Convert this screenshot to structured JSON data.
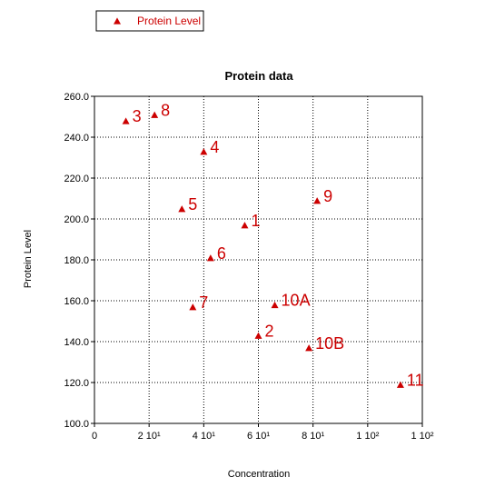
{
  "colors": {
    "marker": "#cc0000",
    "grid": "#000000",
    "background": "#ffffff"
  },
  "chart_data": {
    "type": "scatter",
    "title": "Protein data",
    "xlabel": "Concentration",
    "ylabel": "Protein Level",
    "xlim": [
      0,
      120
    ],
    "ylim": [
      100,
      260
    ],
    "grid": true,
    "legend_placement": "top-left",
    "x_ticks": [
      {
        "value": 0,
        "label": "0"
      },
      {
        "value": 20,
        "label": "2 10¹"
      },
      {
        "value": 40,
        "label": "4 10¹"
      },
      {
        "value": 60,
        "label": "6 10¹"
      },
      {
        "value": 80,
        "label": "8 10¹"
      },
      {
        "value": 100,
        "label": "1 10²"
      },
      {
        "value": 120,
        "label": "1 10²"
      }
    ],
    "y_ticks": [
      {
        "value": 100,
        "label": "100.0"
      },
      {
        "value": 120,
        "label": "120.0"
      },
      {
        "value": 140,
        "label": "140.0"
      },
      {
        "value": 160,
        "label": "160.0"
      },
      {
        "value": 180,
        "label": "180.0"
      },
      {
        "value": 200,
        "label": "200.0"
      },
      {
        "value": 220,
        "label": "220.0"
      },
      {
        "value": 240,
        "label": "240.0"
      },
      {
        "value": 260,
        "label": "260.0"
      }
    ],
    "series": [
      {
        "name": "Protein Level",
        "marker": "triangle",
        "points": [
          {
            "x": 11.5,
            "y": 248,
            "label": "3"
          },
          {
            "x": 22,
            "y": 251,
            "label": "8"
          },
          {
            "x": 40,
            "y": 233,
            "label": "4"
          },
          {
            "x": 32,
            "y": 205,
            "label": "5"
          },
          {
            "x": 55,
            "y": 197,
            "label": "1"
          },
          {
            "x": 81.5,
            "y": 209,
            "label": "9"
          },
          {
            "x": 42.5,
            "y": 181,
            "label": "6"
          },
          {
            "x": 36,
            "y": 157,
            "label": "7"
          },
          {
            "x": 66,
            "y": 158,
            "label": "10A"
          },
          {
            "x": 60,
            "y": 143,
            "label": "2"
          },
          {
            "x": 78.5,
            "y": 137,
            "label": "10B"
          },
          {
            "x": 112,
            "y": 119,
            "label": "11"
          }
        ]
      }
    ]
  }
}
